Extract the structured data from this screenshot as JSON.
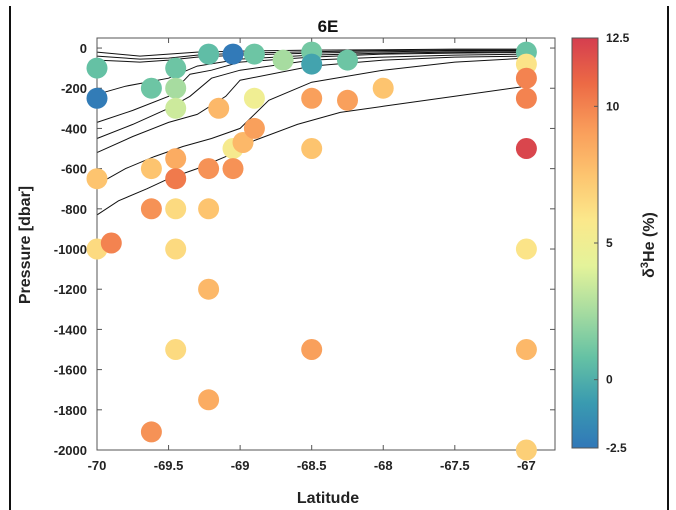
{
  "chart_data": {
    "type": "scatter",
    "title": "6E",
    "xlabel": "Latitude",
    "ylabel": "Pressure [dbar]",
    "xlim": [
      -70,
      -66.8
    ],
    "ylim": [
      -2000,
      50
    ],
    "xticks": [
      -70,
      -69.5,
      -69,
      -68.5,
      -68,
      -67.5,
      -67
    ],
    "xtick_labels": [
      "-70",
      "-69.5",
      "-69",
      "-68.5",
      "-68",
      "-67.5",
      "-67"
    ],
    "yticks": [
      0,
      -200,
      -400,
      -600,
      -800,
      -1000,
      -1200,
      -1400,
      -1600,
      -1800,
      -2000
    ],
    "ytick_labels": [
      "0",
      "-200",
      "-400",
      "-600",
      "-800",
      "-1000",
      "-1200",
      "-1400",
      "-1600",
      "-1800",
      "-2000"
    ],
    "grid": false,
    "colorbar": {
      "label_main": "δ",
      "label_sup": "3",
      "label_rest": "He (%)",
      "range": [
        -2.5,
        12.5
      ],
      "ticks": [
        12.5,
        10,
        5,
        0,
        -2.5
      ],
      "tick_labels": [
        "12.5",
        "10",
        "5",
        "0",
        "-2.5"
      ],
      "colormap": [
        "#3178b8",
        "#3a9bb0",
        "#66c2a4",
        "#a7dca0",
        "#e4f39a",
        "#fbe88b",
        "#fdc46f",
        "#f99c5a",
        "#ec6a45",
        "#d53e4f"
      ]
    },
    "points": [
      {
        "x": -70,
        "y": -100,
        "v": 0.8
      },
      {
        "x": -70,
        "y": -250,
        "v": -2.3
      },
      {
        "x": -70,
        "y": -650,
        "v": 7.5
      },
      {
        "x": -70,
        "y": -1000,
        "v": 6.5
      },
      {
        "x": -69.9,
        "y": -970,
        "v": 10
      },
      {
        "x": -69.62,
        "y": -200,
        "v": 1.0
      },
      {
        "x": -69.62,
        "y": -600,
        "v": 7.5
      },
      {
        "x": -69.62,
        "y": -800,
        "v": 9.5
      },
      {
        "x": -69.62,
        "y": -1910,
        "v": 9.5
      },
      {
        "x": -69.45,
        "y": -100,
        "v": 1.0
      },
      {
        "x": -69.45,
        "y": -200,
        "v": 2.5
      },
      {
        "x": -69.45,
        "y": -300,
        "v": 3.5
      },
      {
        "x": -69.45,
        "y": -550,
        "v": 8.5
      },
      {
        "x": -69.45,
        "y": -650,
        "v": 10.3
      },
      {
        "x": -69.45,
        "y": -800,
        "v": 6.5
      },
      {
        "x": -69.45,
        "y": -1000,
        "v": 6.5
      },
      {
        "x": -69.45,
        "y": -1500,
        "v": 6.5
      },
      {
        "x": -69.22,
        "y": -30,
        "v": 0.6
      },
      {
        "x": -69.22,
        "y": -600,
        "v": 9.5
      },
      {
        "x": -69.22,
        "y": -800,
        "v": 7.5
      },
      {
        "x": -69.22,
        "y": -1200,
        "v": 8.0
      },
      {
        "x": -69.22,
        "y": -1750,
        "v": 8.5
      },
      {
        "x": -69.15,
        "y": -300,
        "v": 8.0
      },
      {
        "x": -69.05,
        "y": -30,
        "v": -2.4
      },
      {
        "x": -69.05,
        "y": -500,
        "v": 5.5
      },
      {
        "x": -69.05,
        "y": -600,
        "v": 9.5
      },
      {
        "x": -68.98,
        "y": -470,
        "v": 8.0
      },
      {
        "x": -68.9,
        "y": -30,
        "v": 1.0
      },
      {
        "x": -68.9,
        "y": -250,
        "v": 5.0
      },
      {
        "x": -68.9,
        "y": -400,
        "v": 9.0
      },
      {
        "x": -68.7,
        "y": -60,
        "v": 2.5
      },
      {
        "x": -68.5,
        "y": -20,
        "v": 1.2
      },
      {
        "x": -68.5,
        "y": -80,
        "v": -0.5
      },
      {
        "x": -68.5,
        "y": -250,
        "v": 9.0
      },
      {
        "x": -68.5,
        "y": -500,
        "v": 7.5
      },
      {
        "x": -68.5,
        "y": -1500,
        "v": 9.0
      },
      {
        "x": -68.25,
        "y": -60,
        "v": 1.0
      },
      {
        "x": -68.25,
        "y": -260,
        "v": 9.0
      },
      {
        "x": -68,
        "y": -200,
        "v": 7.5
      },
      {
        "x": -67,
        "y": -20,
        "v": 0.9
      },
      {
        "x": -67,
        "y": -80,
        "v": 6.0
      },
      {
        "x": -67,
        "y": -150,
        "v": 10
      },
      {
        "x": -67,
        "y": -250,
        "v": 10
      },
      {
        "x": -67,
        "y": -500,
        "v": 12.2
      },
      {
        "x": -67,
        "y": -1000,
        "v": 6.0
      },
      {
        "x": -67,
        "y": -1500,
        "v": 8.0
      },
      {
        "x": -67,
        "y": -2000,
        "v": 7.0
      }
    ],
    "contours": [
      [
        [
          -70,
          -20
        ],
        [
          -69.7,
          -40
        ],
        [
          -69.5,
          -30
        ],
        [
          -69.3,
          -20
        ],
        [
          -69,
          -15
        ],
        [
          -68.5,
          -10
        ],
        [
          -68,
          -8
        ],
        [
          -67.5,
          -5
        ],
        [
          -67,
          -5
        ]
      ],
      [
        [
          -70,
          -40
        ],
        [
          -69.7,
          -55
        ],
        [
          -69.5,
          -50
        ],
        [
          -69.3,
          -35
        ],
        [
          -69,
          -25
        ],
        [
          -68.5,
          -18
        ],
        [
          -68,
          -12
        ],
        [
          -67.5,
          -10
        ],
        [
          -67,
          -10
        ]
      ],
      [
        [
          -70,
          -60
        ],
        [
          -69.7,
          -70
        ],
        [
          -69.5,
          -60
        ],
        [
          -69.3,
          -45
        ],
        [
          -69,
          -35
        ],
        [
          -68.5,
          -25
        ],
        [
          -68,
          -18
        ],
        [
          -67.5,
          -14
        ],
        [
          -67,
          -12
        ]
      ],
      [
        [
          -70,
          -230
        ],
        [
          -69.8,
          -190
        ],
        [
          -69.5,
          -150
        ],
        [
          -69.3,
          -90
        ],
        [
          -69,
          -55
        ],
        [
          -68.5,
          -35
        ],
        [
          -68,
          -25
        ],
        [
          -67.5,
          -20
        ],
        [
          -67,
          -18
        ]
      ],
      [
        [
          -70,
          -370
        ],
        [
          -69.75,
          -310
        ],
        [
          -69.5,
          -240
        ],
        [
          -69.35,
          -130
        ],
        [
          -69.2,
          -110
        ],
        [
          -69,
          -70
        ],
        [
          -68.5,
          -45
        ],
        [
          -68,
          -30
        ],
        [
          -67.5,
          -25
        ],
        [
          -67,
          -22
        ]
      ],
      [
        [
          -70,
          -450
        ],
        [
          -69.75,
          -380
        ],
        [
          -69.5,
          -300
        ],
        [
          -69.35,
          -240
        ],
        [
          -69.2,
          -150
        ],
        [
          -69,
          -110
        ],
        [
          -68.5,
          -60
        ],
        [
          -68,
          -45
        ],
        [
          -67.5,
          -35
        ],
        [
          -67,
          -30
        ]
      ],
      [
        [
          -70,
          -520
        ],
        [
          -69.75,
          -440
        ],
        [
          -69.5,
          -370
        ],
        [
          -69.3,
          -330
        ],
        [
          -69.1,
          -240
        ],
        [
          -69,
          -160
        ],
        [
          -68.5,
          -90
        ],
        [
          -68,
          -60
        ],
        [
          -67.5,
          -45
        ],
        [
          -67,
          -40
        ]
      ],
      [
        [
          -70,
          -680
        ],
        [
          -69.8,
          -600
        ],
        [
          -69.6,
          -540
        ],
        [
          -69.4,
          -490
        ],
        [
          -69.2,
          -450
        ],
        [
          -69.0,
          -400
        ],
        [
          -68.8,
          -260
        ],
        [
          -68.5,
          -170
        ],
        [
          -68,
          -110
        ],
        [
          -67.5,
          -70
        ],
        [
          -67,
          -50
        ]
      ],
      [
        [
          -70,
          -830
        ],
        [
          -69.85,
          -760
        ],
        [
          -69.65,
          -700
        ],
        [
          -69.5,
          -650
        ],
        [
          -69.3,
          -600
        ],
        [
          -69.1,
          -540
        ],
        [
          -68.9,
          -460
        ],
        [
          -68.6,
          -380
        ],
        [
          -68.3,
          -320
        ],
        [
          -68,
          -290
        ],
        [
          -67.5,
          -240
        ],
        [
          -67,
          -190
        ]
      ]
    ]
  }
}
